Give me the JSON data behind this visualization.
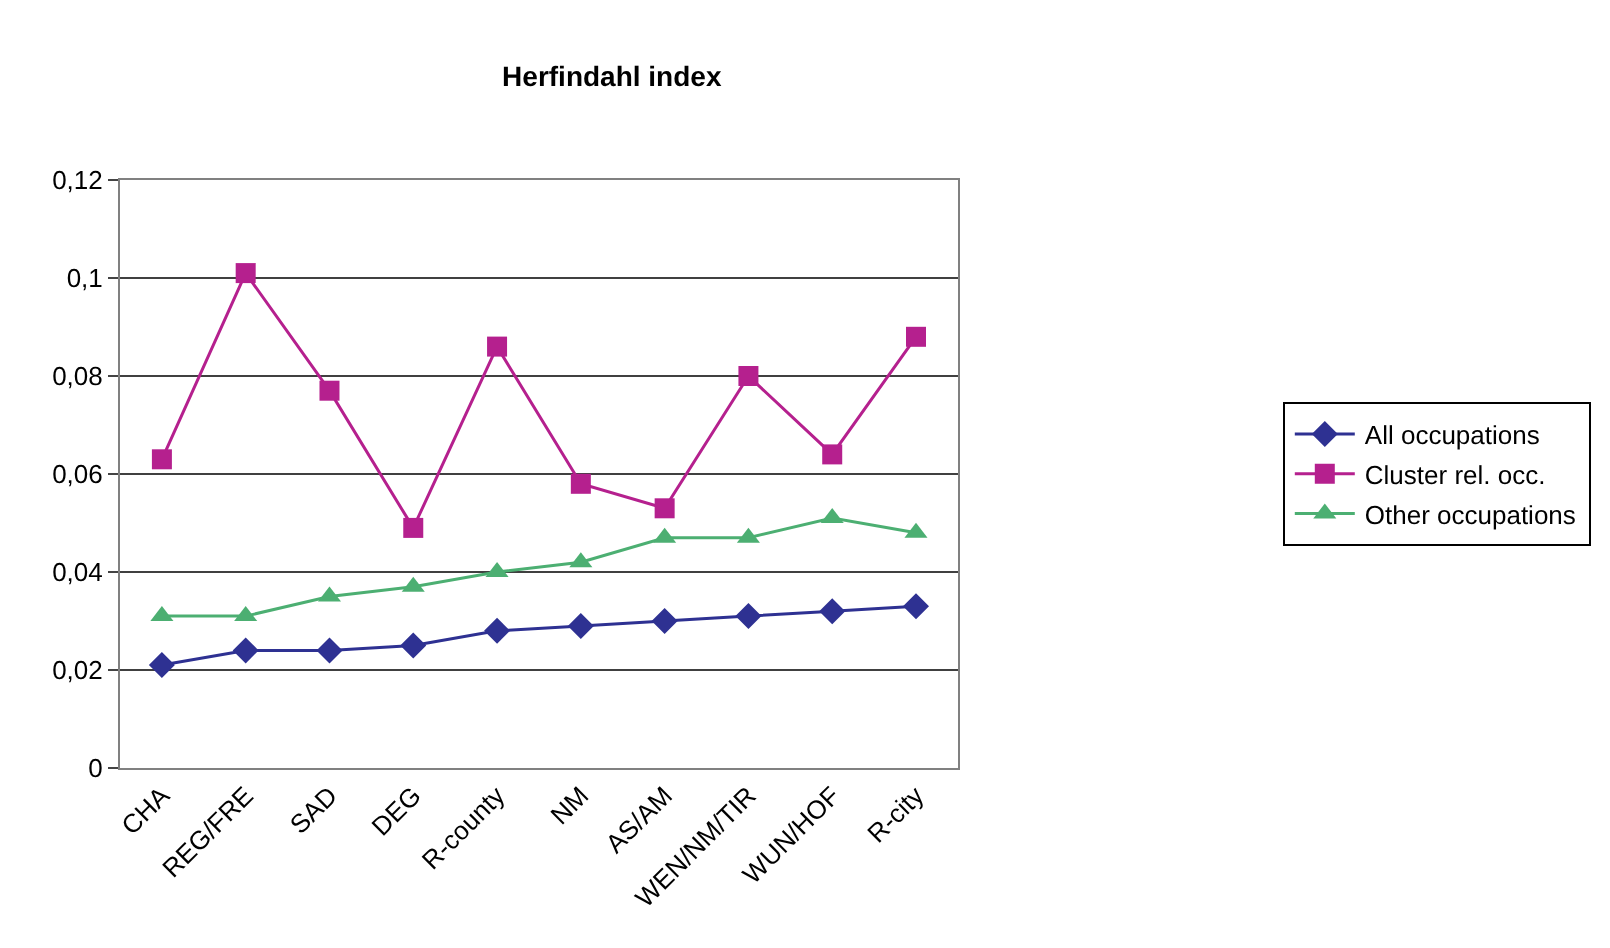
{
  "chart_data": {
    "type": "line",
    "title": "Herfindahl index",
    "categories": [
      "CHA",
      "REG/FRE",
      "SAD",
      "DEG",
      "R-county",
      "NM",
      "AS/AM",
      "WEN/NM/TIR",
      "WUN/HOF",
      "R-city"
    ],
    "series": [
      {
        "name": "All occupations",
        "color": "#2e3192",
        "marker": "diamond",
        "values": [
          0.021,
          0.024,
          0.024,
          0.025,
          0.028,
          0.029,
          0.03,
          0.031,
          0.032,
          0.033
        ]
      },
      {
        "name": "Cluster rel. occ.",
        "color": "#b5208e",
        "marker": "square",
        "values": [
          0.063,
          0.101,
          0.077,
          0.049,
          0.086,
          0.058,
          0.053,
          0.08,
          0.064,
          0.088
        ]
      },
      {
        "name": "Other occupations",
        "color": "#4caf72",
        "marker": "triangle",
        "values": [
          0.031,
          0.031,
          0.035,
          0.037,
          0.04,
          0.042,
          0.047,
          0.047,
          0.051,
          0.048
        ]
      }
    ],
    "ylim": [
      0,
      0.12
    ],
    "yticks": [
      0,
      {
        "value": 0.02,
        "label": "0,02"
      },
      {
        "value": 0.04,
        "label": "0,04"
      },
      {
        "value": 0.06,
        "label": "0,06"
      },
      {
        "value": 0.08,
        "label": "0,08"
      },
      {
        "value": 0.1,
        "label": "0,1"
      },
      {
        "value": 0.12,
        "label": "0,12"
      }
    ],
    "grid": "y",
    "legend": "right"
  }
}
